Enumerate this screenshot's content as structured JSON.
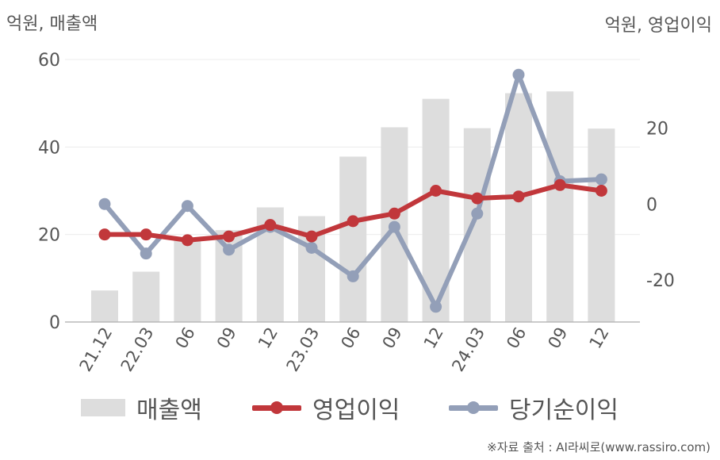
{
  "chart_data": {
    "type": "bar+line",
    "y_left_title": "억원, 매출액",
    "y_right_title": "억원, 영업이익",
    "categories": [
      "21.12",
      "22.03",
      "06",
      "09",
      "12",
      "23.03",
      "06",
      "09",
      "12",
      "24.03",
      "06",
      "09",
      "12"
    ],
    "y_left": {
      "min": 0,
      "max": 60,
      "ticks": [
        "0",
        "20",
        "40",
        "60"
      ]
    },
    "y_right": {
      "min": -31,
      "max": 38,
      "ticks": [
        "-20",
        "0",
        "20"
      ]
    },
    "grid": true,
    "legend_position": "bottom",
    "bar_series": {
      "name": "매출액",
      "axis": "left",
      "color": "#dddddd",
      "values": [
        7.2,
        11.5,
        19.0,
        21.0,
        26.2,
        24.2,
        37.8,
        44.5,
        51.0,
        44.3,
        52.3,
        52.7,
        44.2
      ]
    },
    "line_series": [
      {
        "name": "영업이익",
        "axis": "right",
        "color": "#c1373b",
        "values": [
          -8,
          -8,
          -9.5,
          -8.5,
          -5.5,
          -8.5,
          -4.5,
          -2.5,
          3.5,
          1.5,
          2,
          5,
          3.5
        ]
      },
      {
        "name": "당기순이익",
        "axis": "right",
        "color": "#939fb8",
        "values": [
          0,
          -13,
          -0.5,
          -12,
          -6,
          -11.5,
          -19,
          -6,
          -27,
          -2.5,
          34,
          6,
          6.5
        ]
      }
    ],
    "source": "※자료 출처 : AI라씨로(www.rassiro.com)"
  }
}
